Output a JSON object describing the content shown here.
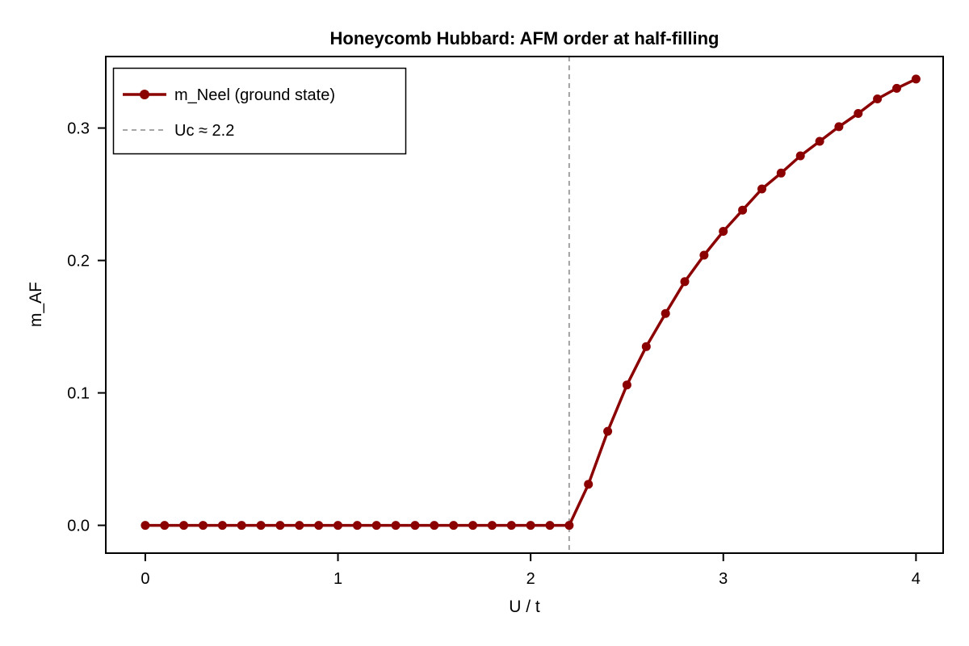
{
  "figure": {
    "background": "#ffffff",
    "frame_color": "#000000",
    "text_color": "#000000"
  },
  "chart_data": {
    "type": "line",
    "title": "Honeycomb Hubbard: AFM order at half-filling",
    "xlabel": "U / t",
    "ylabel": "m_AF",
    "xlim": [
      -0.205,
      4.141
    ],
    "ylim": [
      -0.021,
      0.354
    ],
    "x_ticks": [
      0,
      1,
      2,
      3,
      4
    ],
    "x_tick_labels": [
      "0",
      "1",
      "2",
      "3",
      "4"
    ],
    "y_ticks": [
      0.0,
      0.1,
      0.2,
      0.3
    ],
    "y_tick_labels": [
      "0.0",
      "0.1",
      "0.2",
      "0.3"
    ],
    "grid": false,
    "series": [
      {
        "name": "m_Neel (ground state)",
        "color": "#8b0000",
        "marker": "circle",
        "x": [
          0.0,
          0.1,
          0.2,
          0.3,
          0.4,
          0.5,
          0.6,
          0.7,
          0.8,
          0.9,
          1.0,
          1.1,
          1.2,
          1.3,
          1.4,
          1.5,
          1.6,
          1.7,
          1.8,
          1.9,
          2.0,
          2.1,
          2.2,
          2.3,
          2.4,
          2.5,
          2.6,
          2.7,
          2.8,
          2.9,
          3.0,
          3.1,
          3.2,
          3.3,
          3.4,
          3.5,
          3.6,
          3.7,
          3.8,
          3.9,
          4.0
        ],
        "y": [
          0,
          0,
          0,
          0,
          0,
          0,
          0,
          0,
          0,
          0,
          0,
          0,
          0,
          0,
          0,
          0,
          0,
          0,
          0,
          0,
          0,
          0,
          0,
          0.031,
          0.071,
          0.106,
          0.135,
          0.16,
          0.184,
          0.204,
          0.222,
          0.238,
          0.254,
          0.266,
          0.279,
          0.29,
          0.301,
          0.311,
          0.322,
          0.33,
          0.337
        ]
      }
    ],
    "annotations": [
      {
        "type": "vline",
        "x": 2.2,
        "style": "dashed",
        "color": "#999999"
      }
    ],
    "legend": {
      "position": "top-left",
      "entries": [
        {
          "label": "m_Neel (ground state)",
          "style": "line-marker",
          "color": "#8b0000"
        },
        {
          "label": "Uc ≈ 2.2",
          "style": "dashed",
          "color": "#999999"
        }
      ]
    }
  }
}
